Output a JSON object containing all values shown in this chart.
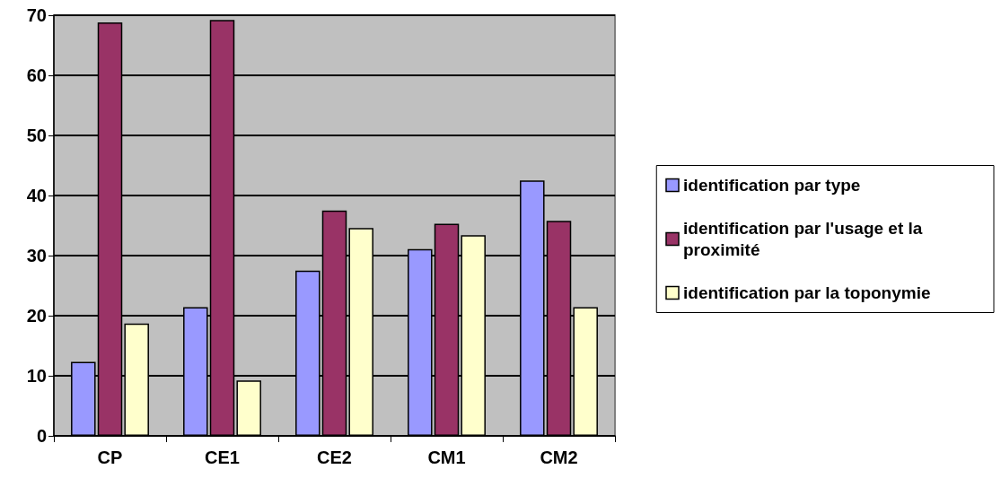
{
  "chart_data": {
    "type": "bar",
    "categories": [
      "CP",
      "CE1",
      "CE2",
      "CM1",
      "CM2"
    ],
    "series": [
      {
        "name": "identification par type",
        "color": "#9999ff",
        "values": [
          12.3,
          21.4,
          27.5,
          31.1,
          42.5
        ]
      },
      {
        "name": "identification par l'usage et la proximité",
        "color": "#993366",
        "values": [
          68.8,
          69.2,
          37.5,
          35.3,
          35.8
        ]
      },
      {
        "name": "identification par la toponymie",
        "color": "#ffffcc",
        "values": [
          18.7,
          9.2,
          34.6,
          33.4,
          21.4
        ]
      }
    ],
    "ylim": [
      0,
      70
    ],
    "yticks": [
      0,
      10,
      20,
      30,
      40,
      50,
      60,
      70
    ],
    "grid": "y",
    "legend": "right"
  }
}
